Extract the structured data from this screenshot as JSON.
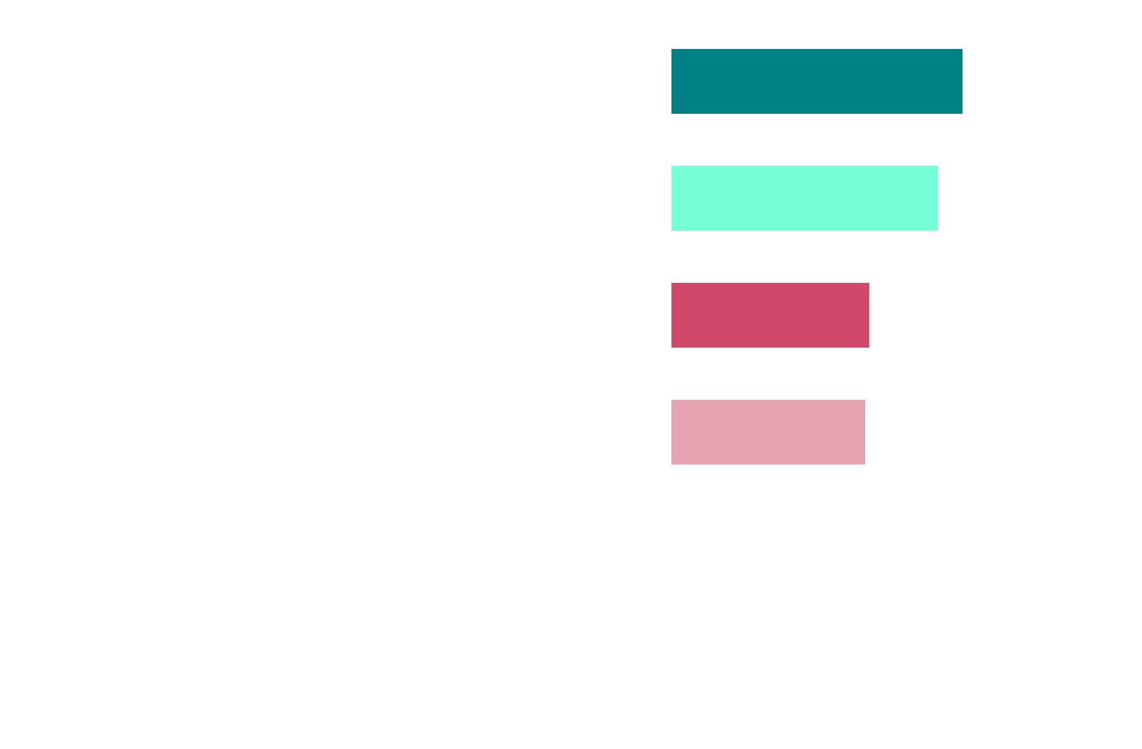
{
  "chart_data": {
    "type": "bar",
    "orientation": "horizontal",
    "categories": [
      "",
      "",
      "",
      ""
    ],
    "values": [
      100,
      91.6,
      68,
      66.6
    ],
    "colors": [
      "#008284",
      "#74FFD6",
      "#D1496A",
      "#E8A3B3"
    ],
    "xlim": [
      0,
      100
    ],
    "title": "",
    "xlabel": "",
    "ylabel": "",
    "grid": false,
    "legend": "none"
  }
}
